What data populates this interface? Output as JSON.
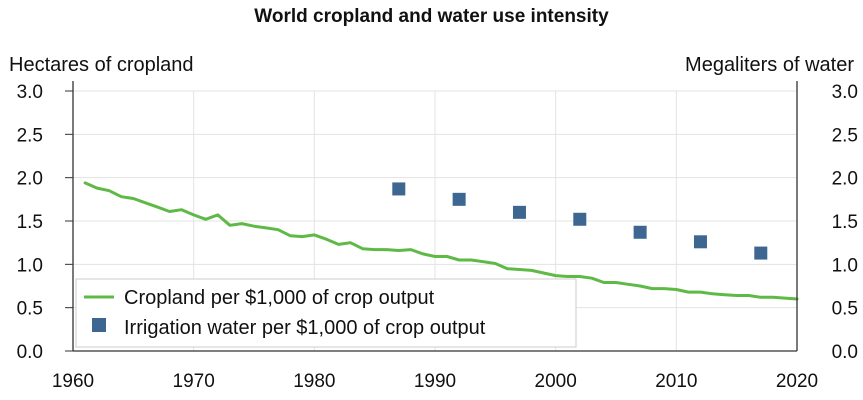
{
  "chart_data": {
    "type": "line",
    "title": "World cropland and water use intensity",
    "xlabel": "",
    "ylabel_left": "Hectares of cropland",
    "ylabel_right": "Megaliters of water",
    "xlim": [
      1960,
      2020
    ],
    "ylim": [
      0,
      3.0
    ],
    "ylim_right": [
      0,
      3.0
    ],
    "x_ticks": [
      "1960",
      "1970",
      "1980",
      "1990",
      "2000",
      "2010",
      "2020"
    ],
    "y_ticks": [
      "0.0",
      "0.5",
      "1.0",
      "1.5",
      "2.0",
      "2.5",
      "3.0"
    ],
    "grid": true,
    "legend_position": "bottom-left",
    "colors": {
      "line": "#5fb946",
      "marker": "#3d6791",
      "grid": "#e3e3e3",
      "axis": "#333333"
    },
    "series": [
      {
        "name": "Cropland per $1,000 of crop output",
        "kind": "line",
        "axis": "left",
        "x": [
          1961,
          1962,
          1963,
          1964,
          1965,
          1966,
          1967,
          1968,
          1969,
          1970,
          1971,
          1972,
          1973,
          1974,
          1975,
          1976,
          1977,
          1978,
          1979,
          1980,
          1981,
          1982,
          1983,
          1984,
          1985,
          1986,
          1987,
          1988,
          1989,
          1990,
          1991,
          1992,
          1993,
          1994,
          1995,
          1996,
          1997,
          1998,
          1999,
          2000,
          2001,
          2002,
          2003,
          2004,
          2005,
          2006,
          2007,
          2008,
          2009,
          2010,
          2011,
          2012,
          2013,
          2014,
          2015,
          2016,
          2017,
          2018,
          2019,
          2020
        ],
        "values": [
          1.94,
          1.88,
          1.85,
          1.78,
          1.76,
          1.71,
          1.66,
          1.61,
          1.63,
          1.57,
          1.52,
          1.57,
          1.45,
          1.47,
          1.44,
          1.42,
          1.4,
          1.33,
          1.32,
          1.34,
          1.29,
          1.23,
          1.25,
          1.18,
          1.17,
          1.17,
          1.16,
          1.17,
          1.12,
          1.09,
          1.09,
          1.05,
          1.05,
          1.03,
          1.01,
          0.95,
          0.94,
          0.93,
          0.9,
          0.87,
          0.86,
          0.86,
          0.84,
          0.79,
          0.79,
          0.77,
          0.75,
          0.72,
          0.72,
          0.71,
          0.68,
          0.68,
          0.66,
          0.65,
          0.64,
          0.64,
          0.62,
          0.62,
          0.61,
          0.6
        ]
      },
      {
        "name": "Irrigation water per $1,000 of crop output",
        "kind": "scatter",
        "axis": "right",
        "x": [
          1987,
          1992,
          1997,
          2002,
          2007,
          2012,
          2017
        ],
        "values": [
          1.87,
          1.75,
          1.6,
          1.52,
          1.37,
          1.26,
          1.13
        ]
      }
    ]
  }
}
